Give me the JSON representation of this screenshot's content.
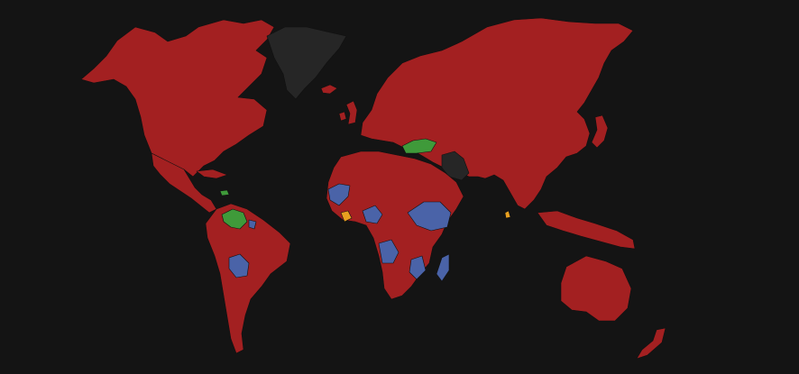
{
  "map": {
    "background": "#141414",
    "border_color": "#111111",
    "legend_colors": {
      "red": "#a32021",
      "blue": "#4a63a8",
      "green": "#3f9a3a",
      "orange": "#e8a020",
      "no_data": "#262626"
    },
    "regions": [
      {
        "id": "north-america",
        "color_key": "red"
      },
      {
        "id": "greenland",
        "color_key": "no_data"
      },
      {
        "id": "central-america",
        "color_key": "red"
      },
      {
        "id": "cuba",
        "color_key": "red"
      },
      {
        "id": "venezuela",
        "color_key": "green"
      },
      {
        "id": "caribbean-island",
        "color_key": "green"
      },
      {
        "id": "south-america",
        "color_key": "red"
      },
      {
        "id": "bolivia",
        "color_key": "blue"
      },
      {
        "id": "guyana",
        "color_key": "blue"
      },
      {
        "id": "iceland",
        "color_key": "red"
      },
      {
        "id": "uk",
        "color_key": "red"
      },
      {
        "id": "ireland",
        "color_key": "red"
      },
      {
        "id": "europe-russia-asia",
        "color_key": "red"
      },
      {
        "id": "japan",
        "color_key": "red"
      },
      {
        "id": "turkey",
        "color_key": "green"
      },
      {
        "id": "iran",
        "color_key": "no_data"
      },
      {
        "id": "africa",
        "color_key": "red"
      },
      {
        "id": "west-africa-blue",
        "color_key": "blue"
      },
      {
        "id": "ivory-coast",
        "color_key": "orange"
      },
      {
        "id": "central-africa-blue",
        "color_key": "blue"
      },
      {
        "id": "horn-of-africa-blue",
        "color_key": "blue"
      },
      {
        "id": "angola-blue",
        "color_key": "blue"
      },
      {
        "id": "mozambique-blue",
        "color_key": "blue"
      },
      {
        "id": "madagascar",
        "color_key": "blue"
      },
      {
        "id": "sri-lanka",
        "color_key": "orange"
      },
      {
        "id": "southeast-asia-islands",
        "color_key": "red"
      },
      {
        "id": "australia",
        "color_key": "red"
      },
      {
        "id": "new-zealand",
        "color_key": "red"
      }
    ]
  }
}
